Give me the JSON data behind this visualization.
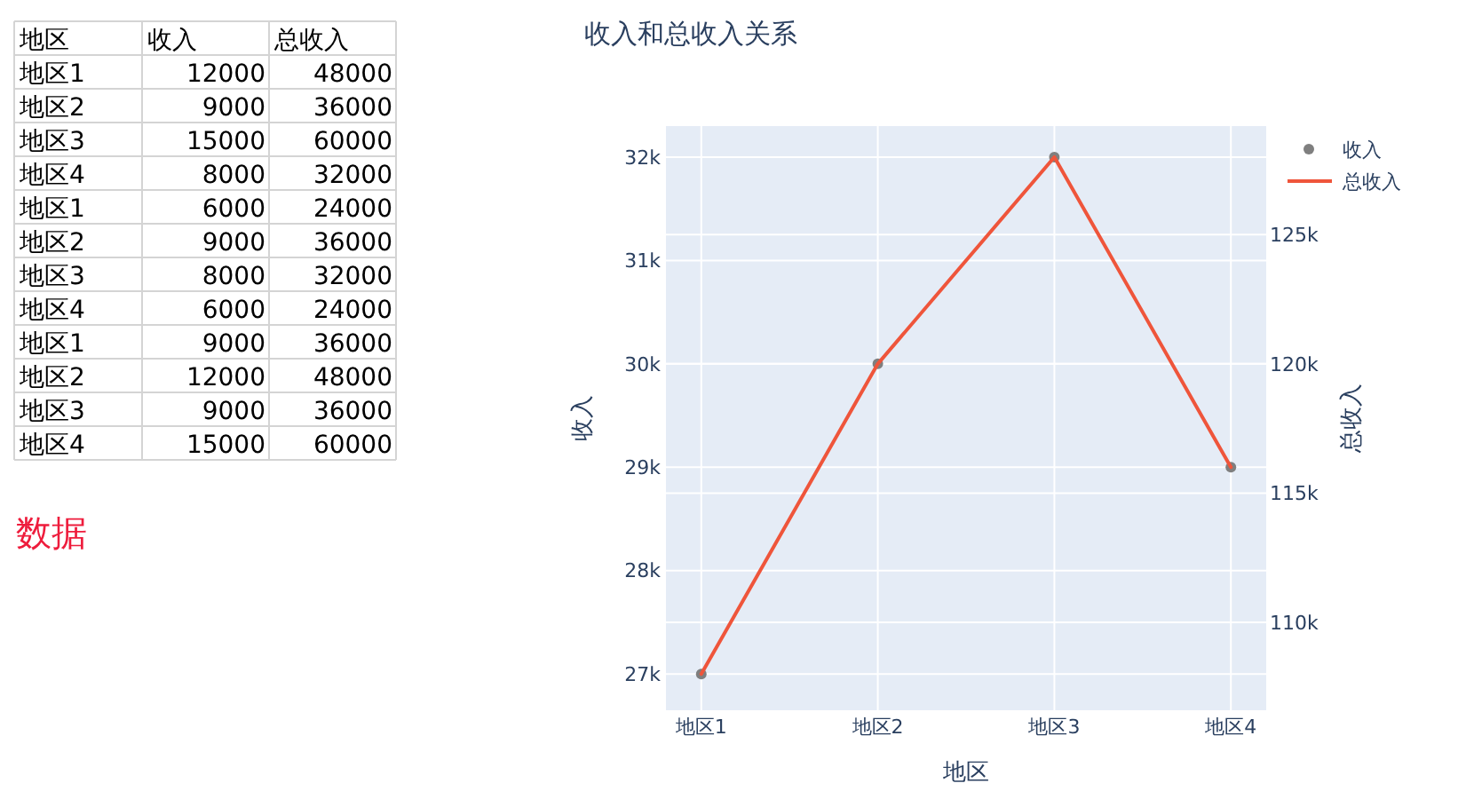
{
  "chart_data": [
    {
      "type": "other",
      "xlabel": "地区",
      "categories": [
        "地区1",
        "地区2",
        "地区3",
        "地区4",
        "地区1",
        "地区2",
        "地区3",
        "地区4",
        "地区1",
        "地区2",
        "地区3",
        "地区4"
      ],
      "series": [
        {
          "name": "收入",
          "values": [
            12000,
            9000,
            15000,
            8000,
            6000,
            9000,
            8000,
            6000,
            9000,
            12000,
            9000,
            15000
          ]
        },
        {
          "name": "总收入",
          "values": [
            48000,
            36000,
            60000,
            32000,
            24000,
            36000,
            32000,
            24000,
            36000,
            48000,
            36000,
            60000
          ]
        }
      ],
      "data_labels": true,
      "annotations": [
        "数据"
      ]
    },
    {
      "type": "line",
      "title": "收入和总收入关系",
      "xlabel": "地区",
      "ylabel": "收入",
      "y2label": "总收入",
      "categories": [
        "地区1",
        "地区2",
        "地区3",
        "地区4"
      ],
      "series": [
        {
          "name": "收入",
          "type": "scatter",
          "marker": "circle",
          "color": "#7f7f7f",
          "values": [
            27000,
            30000,
            32000,
            29000
          ]
        },
        {
          "name": "总收入",
          "type": "line",
          "axis": "y2",
          "color": "#ef553b",
          "values": [
            108000,
            120000,
            128000,
            116000
          ]
        }
      ],
      "ylim": [
        26650,
        32300
      ],
      "yticks": [
        {
          "value": 27000,
          "label": "27k"
        },
        {
          "value": 28000,
          "label": "28k"
        },
        {
          "value": 29000,
          "label": "29k"
        },
        {
          "value": 30000,
          "label": "30k"
        },
        {
          "value": 31000,
          "label": "31k"
        },
        {
          "value": 32000,
          "label": "32k"
        }
      ],
      "y2lim": [
        106600,
        129200
      ],
      "y2ticks": [
        {
          "value": 110000,
          "label": "110k"
        },
        {
          "value": 115000,
          "label": "115k"
        },
        {
          "value": 120000,
          "label": "120k"
        },
        {
          "value": 125000,
          "label": "125k"
        }
      ],
      "grid": true,
      "legend": "top right"
    }
  ]
}
